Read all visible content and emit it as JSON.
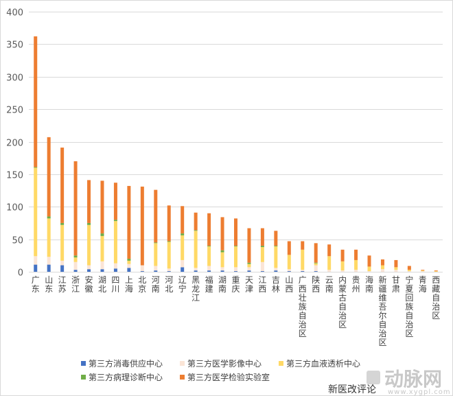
{
  "chart_data": {
    "type": "bar",
    "stacked": true,
    "title": "",
    "xlabel": "",
    "ylabel": "",
    "ylim": [
      0,
      400
    ],
    "yticks": [
      0,
      50,
      100,
      150,
      200,
      250,
      300,
      350,
      400
    ],
    "grid": true,
    "legend_position": "bottom",
    "categories": [
      "广东",
      "山东",
      "江苏",
      "浙江",
      "安徽",
      "湖北",
      "四川",
      "上海",
      "北京",
      "河南",
      "河北",
      "辽宁",
      "黑龙江",
      "福建",
      "湖南",
      "重庆",
      "天津",
      "江西",
      "吉林",
      "山西",
      "广西壮族自治区",
      "陕西",
      "云南",
      "内蒙古自治区",
      "贵州",
      "海南",
      "新疆维吾尔自治区",
      "甘肃",
      "宁夏回族自治区",
      "青海",
      "西藏自治区"
    ],
    "series": [
      {
        "name": "第三方消毒供应中心",
        "color": "#4472c4",
        "values": [
          11,
          11,
          10,
          3,
          4,
          4,
          5,
          6,
          1,
          2,
          1,
          7,
          2,
          2,
          2,
          1,
          2,
          1,
          2,
          1,
          1,
          1,
          0,
          0,
          0,
          0,
          0,
          0,
          0,
          0,
          0
        ]
      },
      {
        "name": "第三方医学影像中心",
        "color": "#fbe5d6",
        "values": [
          13,
          12,
          7,
          12,
          6,
          12,
          8,
          6,
          9,
          7,
          4,
          11,
          4,
          7,
          5,
          6,
          5,
          14,
          4,
          3,
          2,
          9,
          3,
          2,
          3,
          1,
          4,
          3,
          1,
          1,
          0
        ]
      },
      {
        "name": "第三方血液透析中心",
        "color": "#ffd966",
        "values": [
          136,
          59,
          55,
          7,
          62,
          39,
          65,
          5,
          0,
          35,
          41,
          38,
          57,
          30,
          23,
          32,
          5,
          23,
          33,
          22,
          31,
          3,
          21,
          14,
          15,
          7,
          6,
          4,
          2,
          1,
          1
        ]
      },
      {
        "name": "第三方病理诊断中心",
        "color": "#70ad47",
        "values": [
          1,
          3,
          3,
          3,
          3,
          4,
          2,
          3,
          0,
          1,
          1,
          3,
          1,
          1,
          3,
          1,
          2,
          2,
          1,
          0,
          0,
          1,
          0,
          0,
          0,
          0,
          0,
          0,
          0,
          0,
          0
        ]
      },
      {
        "name": "第三方医学检验实验室",
        "color": "#ed7d31",
        "values": [
          201,
          122,
          116,
          145,
          66,
          81,
          57,
          112,
          121,
          81,
          55,
          42,
          27,
          50,
          51,
          42,
          53,
          27,
          23,
          21,
          13,
          30,
          18,
          18,
          16,
          17,
          9,
          11,
          6,
          1,
          1
        ]
      }
    ]
  },
  "footer": {
    "caption": "新医改评论",
    "watermark_brand": "动脉网",
    "watermark_url": "www.xygpl.com"
  }
}
